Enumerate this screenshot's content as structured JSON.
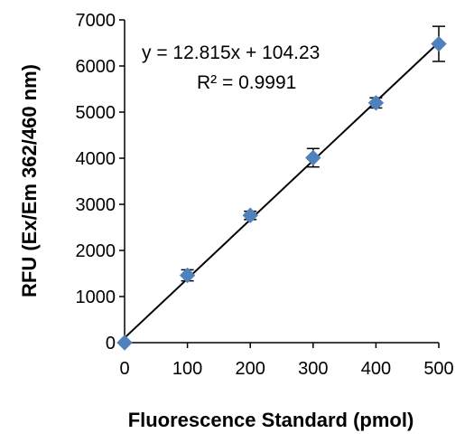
{
  "chart_data": {
    "type": "scatter",
    "xlabel": "Fluorescence Standard (pmol)",
    "ylabel": "RFU (Ex/Em 362/460 nm)",
    "xlim": [
      0,
      500
    ],
    "ylim": [
      0,
      7000
    ],
    "x_ticks": [
      "0",
      "100",
      "200",
      "300",
      "400",
      "500"
    ],
    "y_ticks": [
      "0",
      "1000",
      "2000",
      "3000",
      "4000",
      "5000",
      "6000",
      "7000"
    ],
    "grid": false,
    "series": [
      {
        "x": [
          0,
          100,
          200,
          300,
          400,
          500
        ],
        "y": [
          0,
          1460,
          2760,
          4010,
          5200,
          6480
        ],
        "error": [
          0,
          120,
          90,
          200,
          110,
          380
        ],
        "marker": "diamond",
        "color": "#4f81bd"
      }
    ],
    "trendline": {
      "slope": 12.815,
      "intercept": 104.23,
      "color": "#000000",
      "equation": "y = 12.815x + 104.23",
      "r_squared": "R² = 0.9991"
    }
  }
}
